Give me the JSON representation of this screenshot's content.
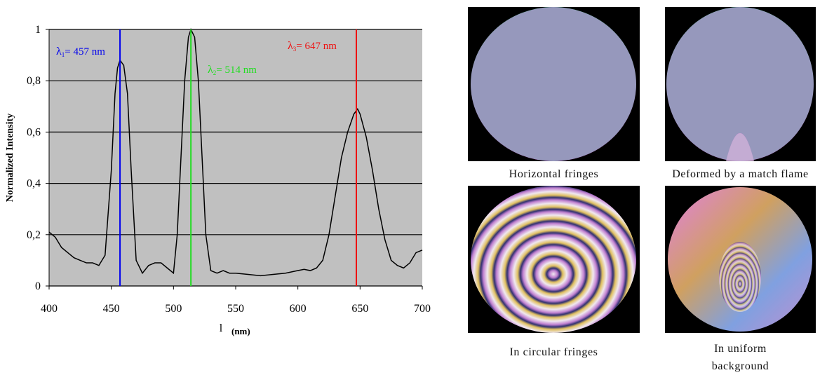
{
  "chart_data": {
    "type": "line",
    "y_label": "Normalized Intensity",
    "x_label": "l",
    "x_unit": "(nm)",
    "xlim": [
      400,
      700
    ],
    "xticks": [
      400,
      450,
      500,
      550,
      600,
      650,
      700
    ],
    "ylim": [
      0,
      1
    ],
    "yticks": [
      0,
      {
        "value": 0.2,
        "label": "0,2"
      },
      {
        "value": 0.4,
        "label": "0,4"
      },
      {
        "value": 0.6,
        "label": "0,6"
      },
      {
        "value": 0.8,
        "label": "0,8"
      },
      1
    ],
    "grid": true,
    "series": [
      {
        "color": "#000000",
        "x": [
          400,
          405,
          410,
          415,
          420,
          425,
          430,
          435,
          440,
          445,
          450,
          453,
          455,
          457,
          460,
          463,
          466,
          470,
          475,
          480,
          485,
          490,
          495,
          500,
          503,
          506,
          509,
          512,
          514,
          517,
          520,
          523,
          526,
          530,
          535,
          540,
          545,
          550,
          560,
          570,
          580,
          590,
          600,
          605,
          610,
          615,
          620,
          625,
          630,
          635,
          640,
          645,
          648,
          650,
          655,
          660,
          665,
          670,
          675,
          680,
          685,
          690,
          695,
          700
        ],
        "values": [
          0.21,
          0.19,
          0.15,
          0.13,
          0.11,
          0.1,
          0.09,
          0.09,
          0.08,
          0.12,
          0.45,
          0.75,
          0.85,
          0.88,
          0.86,
          0.75,
          0.45,
          0.1,
          0.05,
          0.08,
          0.09,
          0.09,
          0.07,
          0.05,
          0.2,
          0.5,
          0.8,
          0.97,
          1.0,
          0.97,
          0.8,
          0.5,
          0.2,
          0.06,
          0.05,
          0.06,
          0.05,
          0.05,
          0.045,
          0.04,
          0.045,
          0.05,
          0.06,
          0.065,
          0.06,
          0.07,
          0.1,
          0.2,
          0.35,
          0.5,
          0.6,
          0.67,
          0.69,
          0.67,
          0.58,
          0.45,
          0.3,
          0.18,
          0.1,
          0.08,
          0.07,
          0.09,
          0.13,
          0.14
        ]
      }
    ],
    "markers": [
      {
        "x": 457,
        "color": "#0000ee",
        "symbol": "λ",
        "sub": "1",
        "label": "= 457 nm"
      },
      {
        "x": 514,
        "color": "#22dd22",
        "symbol": "λ",
        "sub": "2",
        "label": "= 514 nm"
      },
      {
        "x": 647,
        "color": "#ee1111",
        "symbol": "λ",
        "sub": "3",
        "label": "= 647 nm"
      }
    ]
  },
  "figures": [
    {
      "caption": "Horizontal fringes"
    },
    {
      "caption": "Deformed by a match flame"
    },
    {
      "caption": "In circular fringes"
    },
    {
      "caption": "In uniform background"
    }
  ]
}
